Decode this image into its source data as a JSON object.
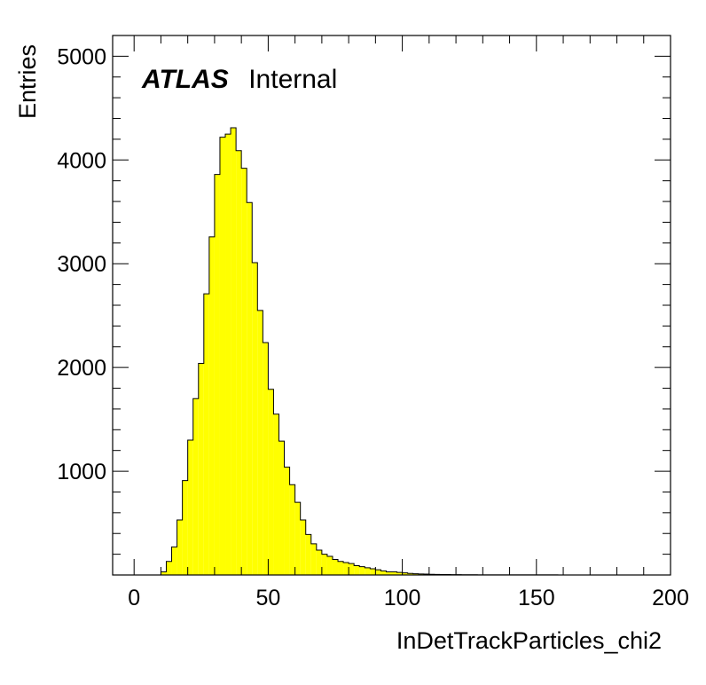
{
  "chart_data": {
    "type": "histogram",
    "xlabel": "InDetTrackParticles_chi2",
    "ylabel": "Entries",
    "label": {
      "experiment": "ATLAS",
      "status": "Internal"
    },
    "xlim": [
      -8,
      200
    ],
    "ylim": [
      0,
      5200
    ],
    "xticks": [
      0,
      50,
      100,
      150,
      200
    ],
    "xtick_labels": [
      "0",
      "50",
      "100",
      "150",
      "200"
    ],
    "yticks": [
      1000,
      2000,
      3000,
      4000,
      5000
    ],
    "ytick_labels": [
      "1000",
      "2000",
      "3000",
      "4000",
      "5000"
    ],
    "bin_width": 2,
    "bin_edges_start": 10,
    "values": [
      30,
      130,
      270,
      530,
      910,
      1300,
      1700,
      2040,
      2710,
      3260,
      3860,
      4220,
      4250,
      4310,
      4090,
      3920,
      3590,
      3010,
      2550,
      2240,
      1790,
      1550,
      1290,
      1040,
      870,
      700,
      530,
      390,
      300,
      240,
      200,
      180,
      150,
      130,
      120,
      110,
      90,
      80,
      70,
      60,
      50,
      40,
      30,
      30,
      25,
      20,
      15,
      12,
      10,
      8,
      6,
      5,
      4,
      4,
      3,
      3,
      2,
      2,
      2,
      1,
      1,
      1,
      1,
      1,
      1,
      1,
      1,
      1,
      1,
      1,
      1,
      1,
      1,
      1
    ],
    "fill_color": "#ffff00",
    "line_color": "#000000",
    "grid": false
  }
}
